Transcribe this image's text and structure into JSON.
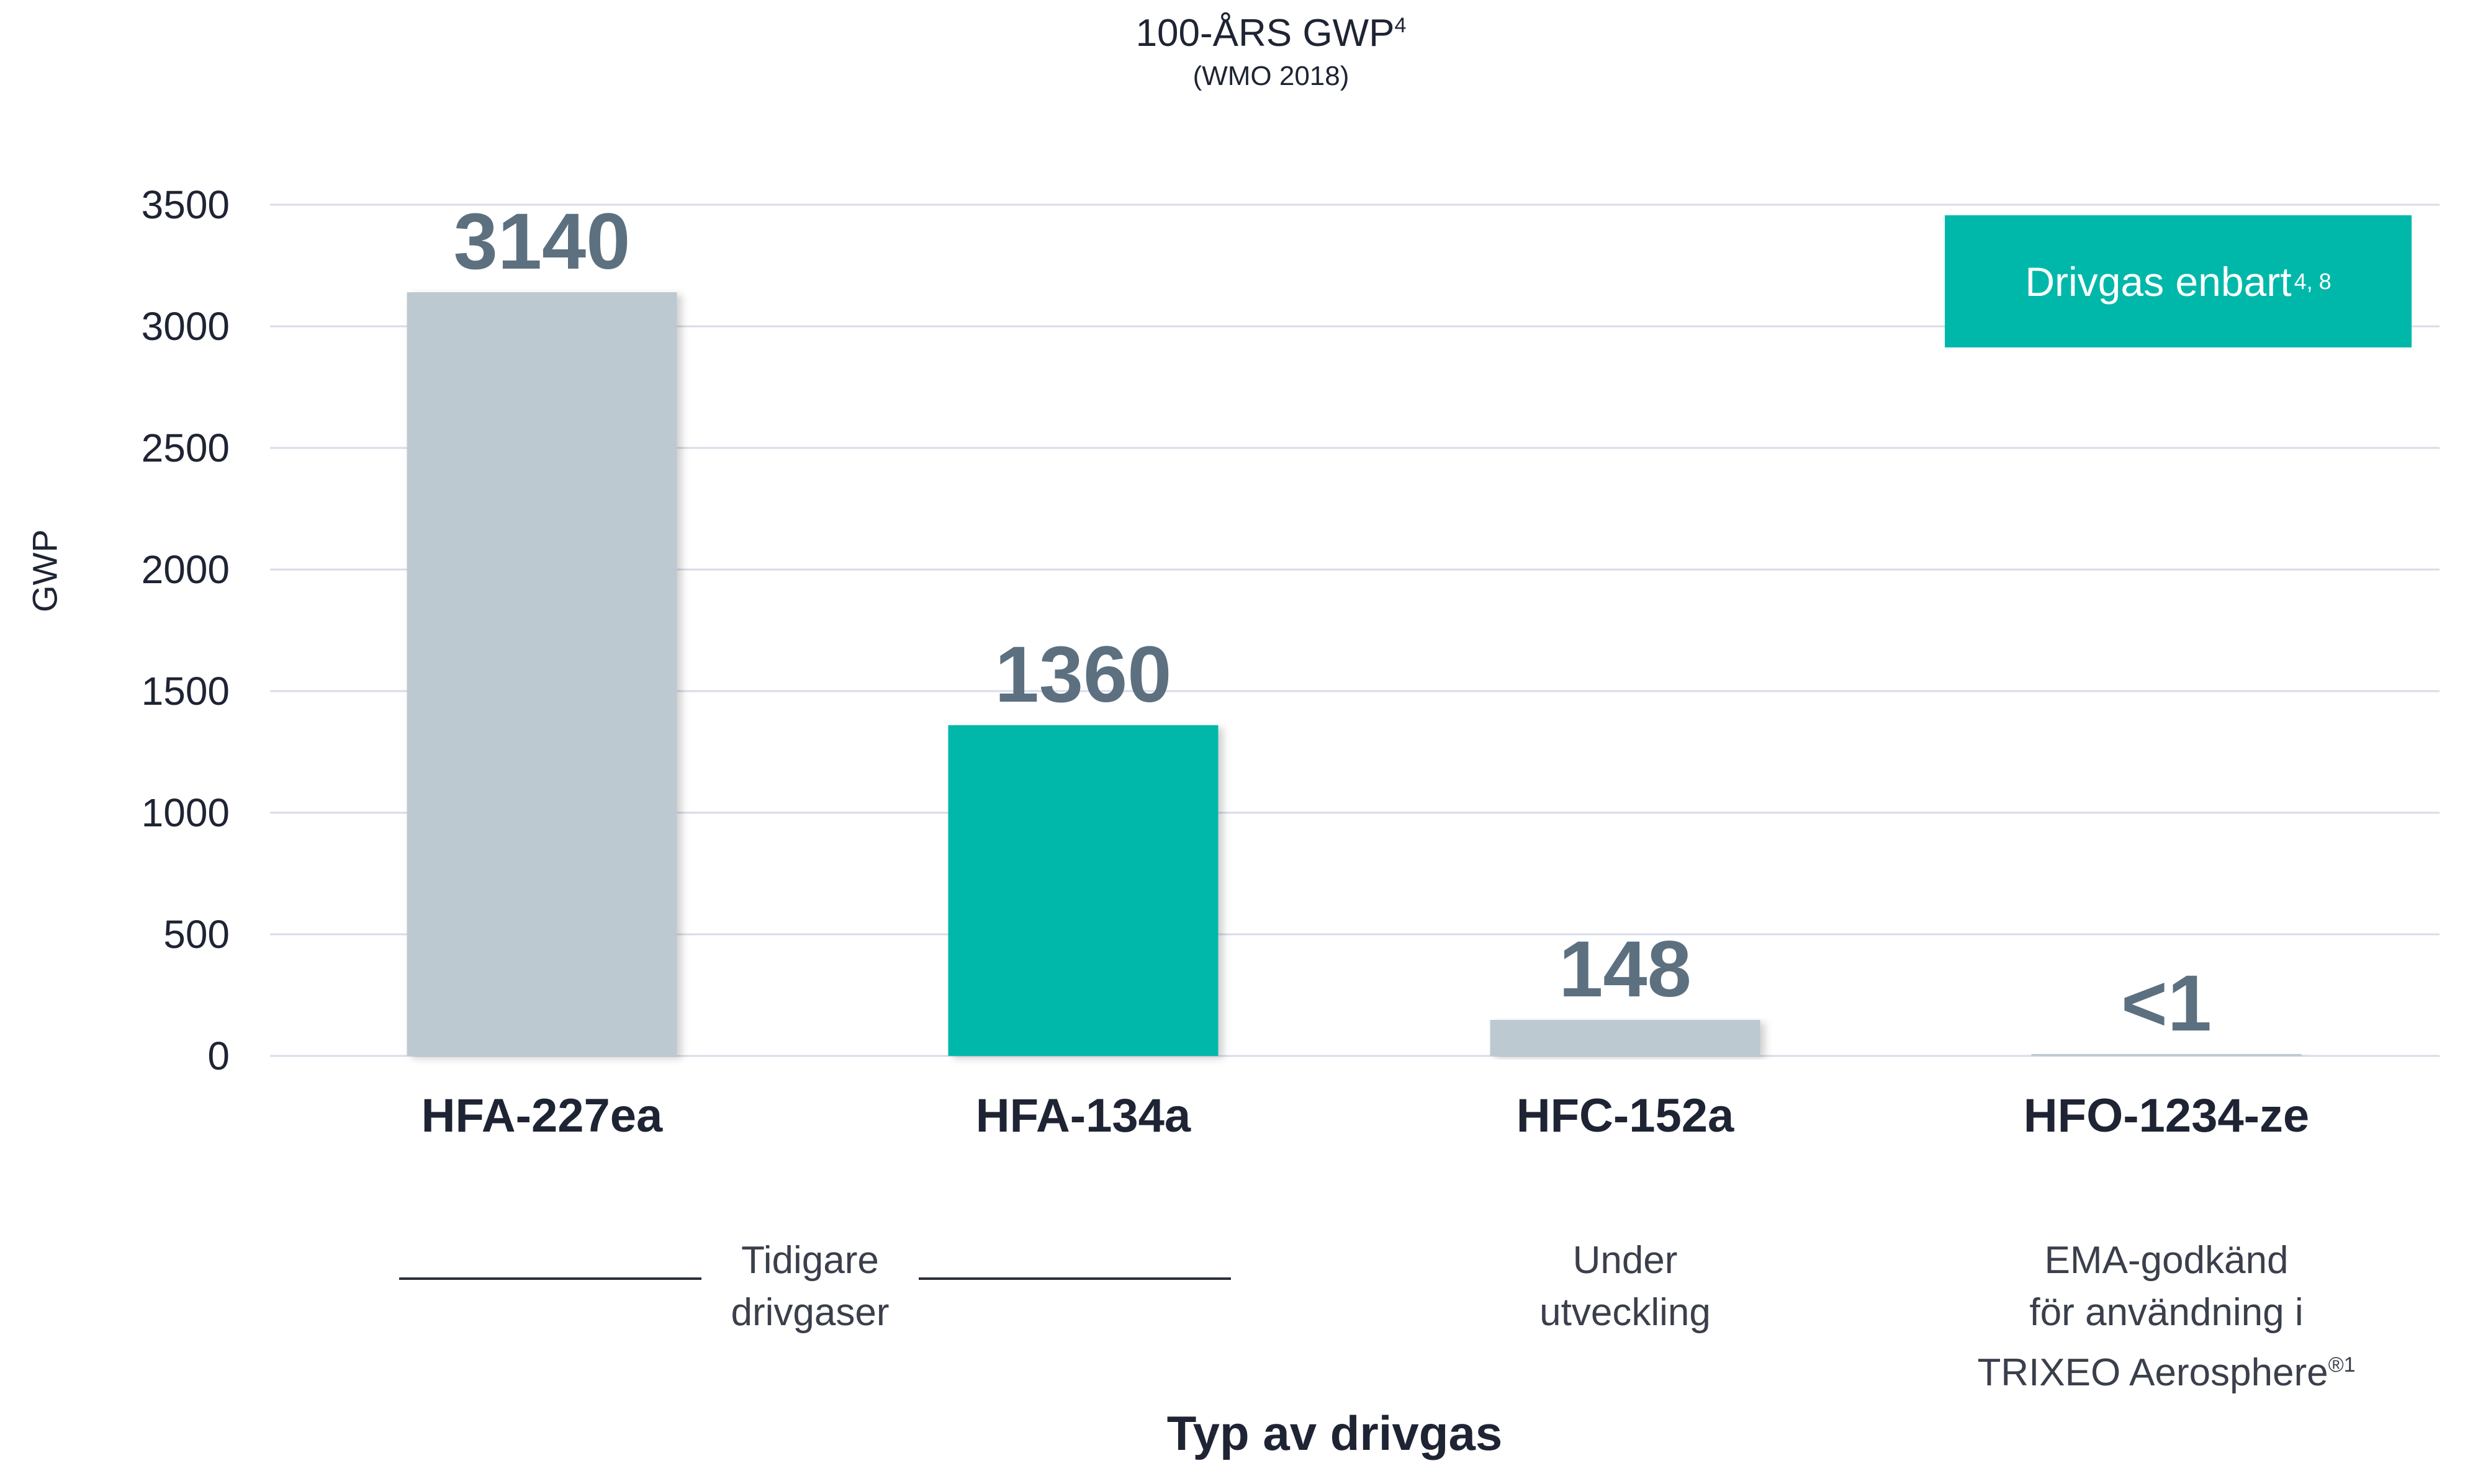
{
  "chart_data": {
    "type": "bar",
    "title": "100-ÅRS GWP",
    "title_sup": "4",
    "subtitle": "(WMO 2018)",
    "ylabel": "GWP",
    "xlabel": "Typ av drivgas",
    "ylim": [
      0,
      3500
    ],
    "yticks": [
      "0",
      "500",
      "1000",
      "1500",
      "2000",
      "2500",
      "3000",
      "3500"
    ],
    "grid": true,
    "categories": [
      "HFA-227ea",
      "HFA-134a",
      "HFC-152a",
      "HFO-1234-ze"
    ],
    "values": [
      3140,
      1360,
      148,
      1
    ],
    "data_labels": [
      "3140",
      "1360",
      "148",
      "<1"
    ],
    "highlighted": "HFA-134a",
    "legend": {
      "label": "Drivgas enbart",
      "sup": "4, 8",
      "placement": "top-right"
    },
    "groups": [
      {
        "label": "Tidigare drivgaser",
        "categories": [
          "HFA-227ea",
          "HFA-134a"
        ]
      },
      {
        "label": "Under utveckling",
        "categories": [
          "HFC-152a"
        ]
      },
      {
        "label": "EMA-godkänd för användning i TRIXEO Aerosphere",
        "sup": "®1",
        "categories": [
          "HFO-1234-ze"
        ]
      }
    ]
  },
  "text": {
    "group_tidigare_1": "Tidigare",
    "group_tidigare_2": "drivgaser",
    "group_under_1": "Under",
    "group_under_2": "utveckling",
    "group_ema_1": "EMA-godkänd",
    "group_ema_2": "för användning i",
    "group_ema_3": "TRIXEO Aerosphere",
    "group_ema_sup": "®1"
  },
  "colors": {
    "bar_default": "#bdc9d0",
    "bar_highlight": "#00b8aa",
    "value_label": "#5c7080",
    "gridline": "#d8dbea",
    "text": "#1e2433",
    "legend_bg": "#00b8aa"
  }
}
